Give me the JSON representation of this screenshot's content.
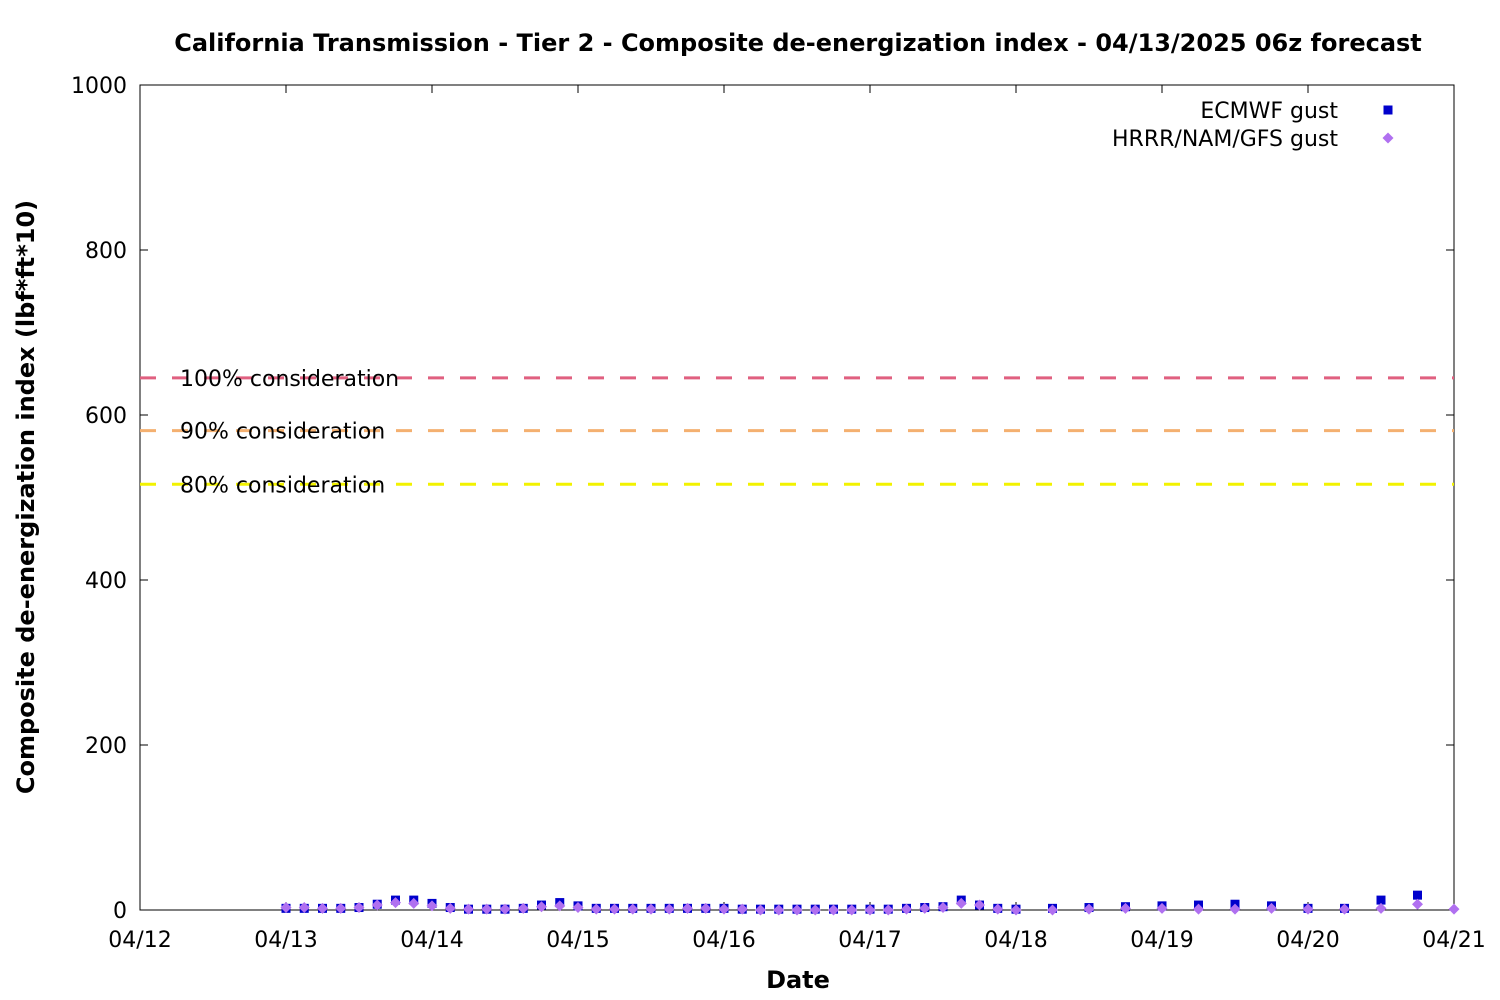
{
  "chart_data": {
    "type": "scatter",
    "title": "California Transmission - Tier 2 - Composite de-energization index - 04/13/2025 06z forecast",
    "xlabel": "Date",
    "ylabel": "Composite de-energization index (lbf*ft*10)",
    "xlim": [
      "2025-04-12",
      "2025-04-21"
    ],
    "ylim": [
      0,
      1000
    ],
    "x_ticks": [
      "04/12",
      "04/13",
      "04/14",
      "04/15",
      "04/16",
      "04/17",
      "04/18",
      "04/19",
      "04/20",
      "04/21"
    ],
    "y_ticks": [
      0,
      200,
      400,
      600,
      800,
      1000
    ],
    "grid": false,
    "legend": "top-right",
    "reference_lines": [
      {
        "label": "100% consideration",
        "y": 645,
        "color": "#e06080"
      },
      {
        "label": "90% consideration",
        "y": 581,
        "color": "#f4b070"
      },
      {
        "label": "80% consideration",
        "y": 516,
        "color": "#f2f200"
      }
    ],
    "series": [
      {
        "name": "ECMWF gust",
        "color": "#0000cc",
        "marker": "square",
        "x": [
          "2025-04-13 00:00",
          "2025-04-13 03:00",
          "2025-04-13 06:00",
          "2025-04-13 09:00",
          "2025-04-13 12:00",
          "2025-04-13 15:00",
          "2025-04-13 18:00",
          "2025-04-13 21:00",
          "2025-04-14 00:00",
          "2025-04-14 03:00",
          "2025-04-14 06:00",
          "2025-04-14 09:00",
          "2025-04-14 12:00",
          "2025-04-14 15:00",
          "2025-04-14 18:00",
          "2025-04-14 21:00",
          "2025-04-15 00:00",
          "2025-04-15 03:00",
          "2025-04-15 06:00",
          "2025-04-15 09:00",
          "2025-04-15 12:00",
          "2025-04-15 15:00",
          "2025-04-15 18:00",
          "2025-04-15 21:00",
          "2025-04-16 00:00",
          "2025-04-16 03:00",
          "2025-04-16 06:00",
          "2025-04-16 09:00",
          "2025-04-16 12:00",
          "2025-04-16 15:00",
          "2025-04-16 18:00",
          "2025-04-16 21:00",
          "2025-04-17 00:00",
          "2025-04-17 03:00",
          "2025-04-17 06:00",
          "2025-04-17 09:00",
          "2025-04-17 12:00",
          "2025-04-17 15:00",
          "2025-04-17 18:00",
          "2025-04-17 21:00",
          "2025-04-18 00:00",
          "2025-04-18 06:00",
          "2025-04-18 12:00",
          "2025-04-18 18:00",
          "2025-04-19 00:00",
          "2025-04-19 06:00",
          "2025-04-19 12:00",
          "2025-04-19 18:00",
          "2025-04-20 00:00",
          "2025-04-20 06:00",
          "2025-04-20 12:00",
          "2025-04-20 18:00"
        ],
        "y": [
          2,
          2,
          2,
          2,
          3,
          7,
          12,
          12,
          8,
          3,
          1,
          1,
          1,
          2,
          6,
          9,
          5,
          2,
          2,
          2,
          2,
          2,
          2,
          2,
          2,
          1,
          1,
          1,
          1,
          1,
          1,
          1,
          1,
          1,
          2,
          3,
          4,
          12,
          6,
          2,
          1,
          2,
          3,
          4,
          5,
          6,
          7,
          5,
          2,
          2,
          12,
          18
        ]
      },
      {
        "name": "HRRR/NAM/GFS gust",
        "color": "#b070f0",
        "marker": "diamond",
        "x": [
          "2025-04-13 00:00",
          "2025-04-13 03:00",
          "2025-04-13 06:00",
          "2025-04-13 09:00",
          "2025-04-13 12:00",
          "2025-04-13 15:00",
          "2025-04-13 18:00",
          "2025-04-13 21:00",
          "2025-04-14 00:00",
          "2025-04-14 03:00",
          "2025-04-14 06:00",
          "2025-04-14 09:00",
          "2025-04-14 12:00",
          "2025-04-14 15:00",
          "2025-04-14 18:00",
          "2025-04-14 21:00",
          "2025-04-15 00:00",
          "2025-04-15 03:00",
          "2025-04-15 06:00",
          "2025-04-15 09:00",
          "2025-04-15 12:00",
          "2025-04-15 15:00",
          "2025-04-15 18:00",
          "2025-04-15 21:00",
          "2025-04-16 00:00",
          "2025-04-16 03:00",
          "2025-04-16 06:00",
          "2025-04-16 09:00",
          "2025-04-16 12:00",
          "2025-04-16 15:00",
          "2025-04-16 18:00",
          "2025-04-16 21:00",
          "2025-04-17 00:00",
          "2025-04-17 03:00",
          "2025-04-17 06:00",
          "2025-04-17 09:00",
          "2025-04-17 12:00",
          "2025-04-17 15:00",
          "2025-04-17 18:00",
          "2025-04-17 21:00",
          "2025-04-18 00:00",
          "2025-04-18 06:00",
          "2025-04-18 12:00",
          "2025-04-18 18:00",
          "2025-04-19 00:00",
          "2025-04-19 06:00",
          "2025-04-19 12:00",
          "2025-04-19 18:00",
          "2025-04-20 00:00",
          "2025-04-20 06:00",
          "2025-04-20 12:00",
          "2025-04-20 18:00",
          "2025-04-21 00:00"
        ],
        "y": [
          3,
          3,
          2,
          2,
          3,
          6,
          9,
          8,
          5,
          2,
          1,
          1,
          1,
          2,
          4,
          5,
          3,
          1,
          1,
          1,
          1,
          1,
          2,
          2,
          1,
          1,
          0,
          0,
          0,
          0,
          0,
          0,
          0,
          0,
          1,
          2,
          3,
          8,
          6,
          1,
          0,
          0,
          1,
          2,
          2,
          1,
          1,
          2,
          1,
          1,
          2,
          7,
          1
        ]
      }
    ]
  }
}
